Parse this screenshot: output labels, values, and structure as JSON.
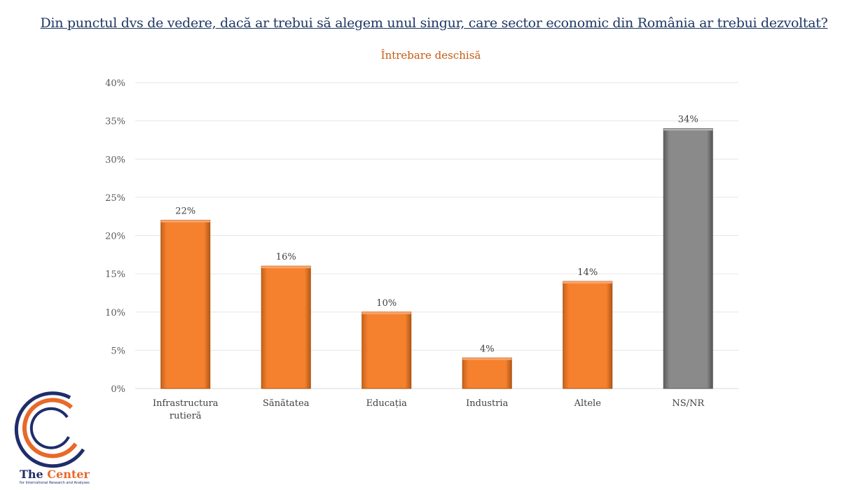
{
  "title": "Din punctul dvs de vedere, dacă ar trebui să alegem unul singur, care sector economic din România ar trebui dezvoltat?",
  "subtitle": "Întrebare deschisă",
  "logo": {
    "name_part1": "The ",
    "name_part2": "Center",
    "tagline": "for International Research and Analyses"
  },
  "colors": {
    "bar": "#f5812f",
    "bar_highlight": "#8a8a8a",
    "title": "#1f3864",
    "subtitle": "#c55a11"
  },
  "chart_data": {
    "type": "bar",
    "categories": [
      "Infrastructura rutieră",
      "Sănătatea",
      "Educația",
      "Industria",
      "Altele",
      "NS/NR"
    ],
    "values": [
      22,
      16,
      10,
      4,
      14,
      34
    ],
    "value_labels": [
      "22%",
      "16%",
      "10%",
      "4%",
      "14%",
      "34%"
    ],
    "y_ticks": [
      "0%",
      "5%",
      "10%",
      "15%",
      "20%",
      "25%",
      "30%",
      "35%",
      "40%"
    ],
    "ylim": [
      0,
      40
    ],
    "grid": true,
    "legend": false,
    "highlight_category": "NS/NR"
  }
}
